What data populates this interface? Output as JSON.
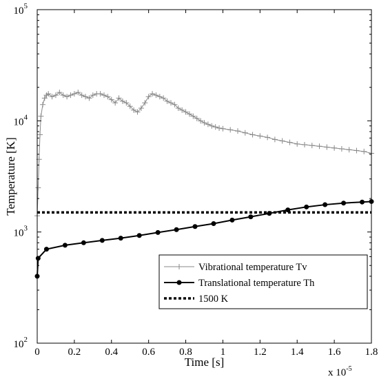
{
  "chart_data": {
    "type": "line",
    "xlabel": "Time [s]",
    "ylabel": "Temperature [K]",
    "x_multiplier_label": "x 10",
    "x_multiplier_exp": "-5",
    "xlim": [
      0,
      1.8
    ],
    "x_unit_scale": 1e-05,
    "ylim": [
      100,
      100000
    ],
    "yscale": "log",
    "grid": false,
    "legend_position": "lower-right",
    "x_ticks": [
      {
        "value": 0,
        "label": "0"
      },
      {
        "value": 0.2,
        "label": "0.2"
      },
      {
        "value": 0.4,
        "label": "0.4"
      },
      {
        "value": 0.6,
        "label": "0.6"
      },
      {
        "value": 0.8,
        "label": "0.8"
      },
      {
        "value": 1.0,
        "label": "1"
      },
      {
        "value": 1.2,
        "label": "1.2"
      },
      {
        "value": 1.4,
        "label": "1.4"
      },
      {
        "value": 1.6,
        "label": "1.6"
      },
      {
        "value": 1.8,
        "label": "1.8"
      }
    ],
    "y_ticks": [
      {
        "value": 100,
        "base": "10",
        "exp": "2"
      },
      {
        "value": 1000,
        "base": "10",
        "exp": "3"
      },
      {
        "value": 10000,
        "base": "10",
        "exp": "4"
      },
      {
        "value": 100000,
        "base": "10",
        "exp": "5"
      }
    ],
    "series": [
      {
        "name": "Vibrational temperature Tv",
        "color": "#888888",
        "marker": "plus",
        "x": [
          0.0,
          0.005,
          0.01,
          0.015,
          0.02,
          0.03,
          0.04,
          0.05,
          0.06,
          0.08,
          0.1,
          0.12,
          0.14,
          0.16,
          0.18,
          0.2,
          0.22,
          0.24,
          0.26,
          0.28,
          0.3,
          0.32,
          0.34,
          0.36,
          0.38,
          0.4,
          0.42,
          0.44,
          0.46,
          0.48,
          0.5,
          0.52,
          0.54,
          0.56,
          0.58,
          0.6,
          0.62,
          0.64,
          0.66,
          0.68,
          0.7,
          0.72,
          0.74,
          0.76,
          0.78,
          0.8,
          0.82,
          0.84,
          0.86,
          0.88,
          0.9,
          0.92,
          0.94,
          0.96,
          0.98,
          1.0,
          1.04,
          1.08,
          1.12,
          1.16,
          1.2,
          1.24,
          1.28,
          1.32,
          1.36,
          1.4,
          1.44,
          1.48,
          1.52,
          1.56,
          1.6,
          1.64,
          1.68,
          1.72,
          1.76,
          1.8
        ],
        "y": [
          1400,
          2500,
          4500,
          7500,
          11000,
          14000,
          16000,
          17000,
          17500,
          16500,
          17000,
          18000,
          17000,
          16500,
          17000,
          17500,
          18000,
          17000,
          16500,
          16000,
          17000,
          17500,
          17500,
          17000,
          16500,
          15500,
          14500,
          16000,
          15000,
          14500,
          13500,
          12500,
          12000,
          13000,
          14500,
          16500,
          17500,
          17000,
          16500,
          16000,
          15000,
          14500,
          14000,
          13000,
          12500,
          12000,
          11500,
          11000,
          10500,
          10000,
          9600,
          9300,
          9000,
          8800,
          8600,
          8500,
          8300,
          8100,
          7800,
          7500,
          7300,
          7100,
          6800,
          6600,
          6400,
          6200,
          6100,
          6000,
          5900,
          5800,
          5700,
          5600,
          5500,
          5400,
          5300,
          5100
        ]
      },
      {
        "name": "Translational temperature Th",
        "color": "#000000",
        "marker": "circle",
        "x": [
          0.0,
          0.005,
          0.05,
          0.15,
          0.25,
          0.35,
          0.45,
          0.55,
          0.65,
          0.75,
          0.85,
          0.95,
          1.05,
          1.15,
          1.25,
          1.35,
          1.45,
          1.55,
          1.65,
          1.75,
          1.8
        ],
        "y": [
          400,
          580,
          700,
          760,
          800,
          840,
          880,
          930,
          990,
          1050,
          1120,
          1190,
          1280,
          1370,
          1470,
          1580,
          1680,
          1760,
          1820,
          1860,
          1880
        ]
      },
      {
        "name": "1500 K",
        "color": "#000000",
        "marker": "none",
        "dashed": true,
        "x": [
          0.0,
          1.8
        ],
        "y": [
          1500,
          1500
        ]
      }
    ]
  }
}
